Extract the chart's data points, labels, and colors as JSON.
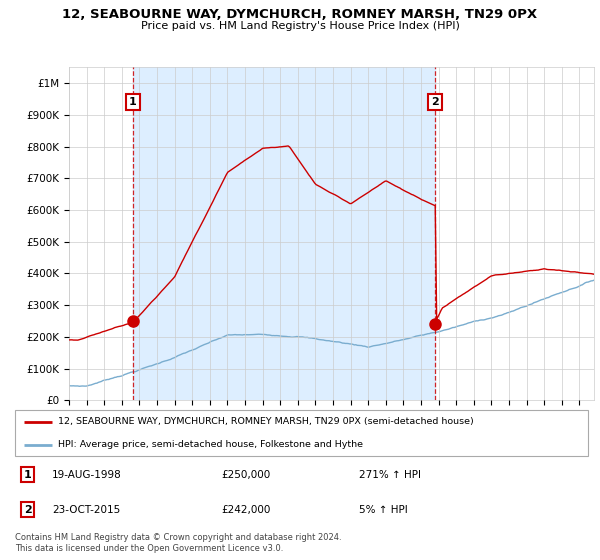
{
  "title": "12, SEABOURNE WAY, DYMCHURCH, ROMNEY MARSH, TN29 0PX",
  "subtitle": "Price paid vs. HM Land Registry's House Price Index (HPI)",
  "ylabel_ticks": [
    "£0",
    "£100K",
    "£200K",
    "£300K",
    "£400K",
    "£500K",
    "£600K",
    "£700K",
    "£800K",
    "£900K",
    "£1M"
  ],
  "ytick_values": [
    0,
    100000,
    200000,
    300000,
    400000,
    500000,
    600000,
    700000,
    800000,
    900000,
    1000000
  ],
  "xlim_start": 1995.0,
  "xlim_end": 2024.83,
  "ylim_top": 1050000,
  "sale1_year": 1998.63,
  "sale1_price": 250000,
  "sale2_year": 2015.81,
  "sale2_price": 242000,
  "label1": "1",
  "label2": "2",
  "legend_red": "12, SEABOURNE WAY, DYMCHURCH, ROMNEY MARSH, TN29 0PX (semi-detached house)",
  "legend_blue": "HPI: Average price, semi-detached house, Folkestone and Hythe",
  "table_rows": [
    {
      "num": "1",
      "date": "19-AUG-1998",
      "price": "£250,000",
      "change": "271% ↑ HPI"
    },
    {
      "num": "2",
      "date": "23-OCT-2015",
      "price": "£242,000",
      "change": "5% ↑ HPI"
    }
  ],
  "footer": "Contains HM Land Registry data © Crown copyright and database right 2024.\nThis data is licensed under the Open Government Licence v3.0.",
  "red_color": "#cc0000",
  "blue_color": "#7aadcf",
  "fill_color": "#ddeeff",
  "dashed_color": "#cc0000",
  "grid_color": "#cccccc",
  "bg_color": "#ffffff"
}
